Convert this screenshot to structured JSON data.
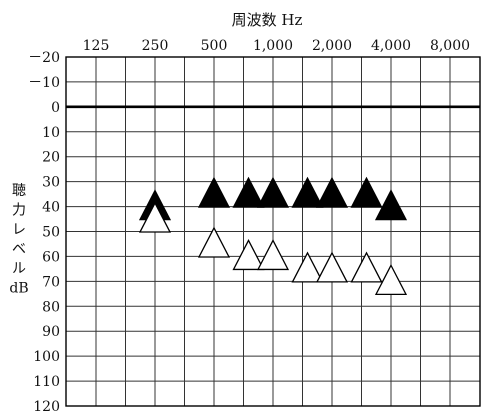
{
  "chart_data": {
    "type": "scatter",
    "xlabel": "周波数 Hz",
    "ylabel": "聴力レベル dB",
    "x_ticks": [
      "125",
      "250",
      "500",
      "1,000",
      "2,000",
      "4,000",
      "8,000"
    ],
    "x_tick_values": [
      125,
      250,
      500,
      1000,
      2000,
      4000,
      8000
    ],
    "x_scale": "log2",
    "xlim": [
      125,
      8000
    ],
    "y_ticks": [
      "－20",
      "－10",
      "0",
      "10",
      "20",
      "30",
      "40",
      "50",
      "60",
      "70",
      "80",
      "90",
      "100",
      "110",
      "120"
    ],
    "y_tick_values": [
      -20,
      -10,
      0,
      10,
      20,
      30,
      40,
      50,
      60,
      70,
      80,
      90,
      100,
      110,
      120
    ],
    "ylim": [
      -20,
      120
    ],
    "y_inverted": true,
    "grid": true,
    "reference_line_y": 0,
    "series": [
      {
        "marker": "filled-triangle",
        "color": "#000000",
        "points": [
          {
            "x": 250,
            "y": 40
          },
          {
            "x": 500,
            "y": 35
          },
          {
            "x": 750,
            "y": 35
          },
          {
            "x": 1000,
            "y": 35
          },
          {
            "x": 1500,
            "y": 35
          },
          {
            "x": 2000,
            "y": 35
          },
          {
            "x": 3000,
            "y": 35
          },
          {
            "x": 4000,
            "y": 40
          }
        ]
      },
      {
        "marker": "open-triangle",
        "color": "#000000",
        "points": [
          {
            "x": 250,
            "y": 45
          },
          {
            "x": 500,
            "y": 55
          },
          {
            "x": 750,
            "y": 60
          },
          {
            "x": 1000,
            "y": 60
          },
          {
            "x": 1500,
            "y": 65
          },
          {
            "x": 2000,
            "y": 65
          },
          {
            "x": 3000,
            "y": 65
          },
          {
            "x": 4000,
            "y": 70
          }
        ]
      }
    ]
  }
}
